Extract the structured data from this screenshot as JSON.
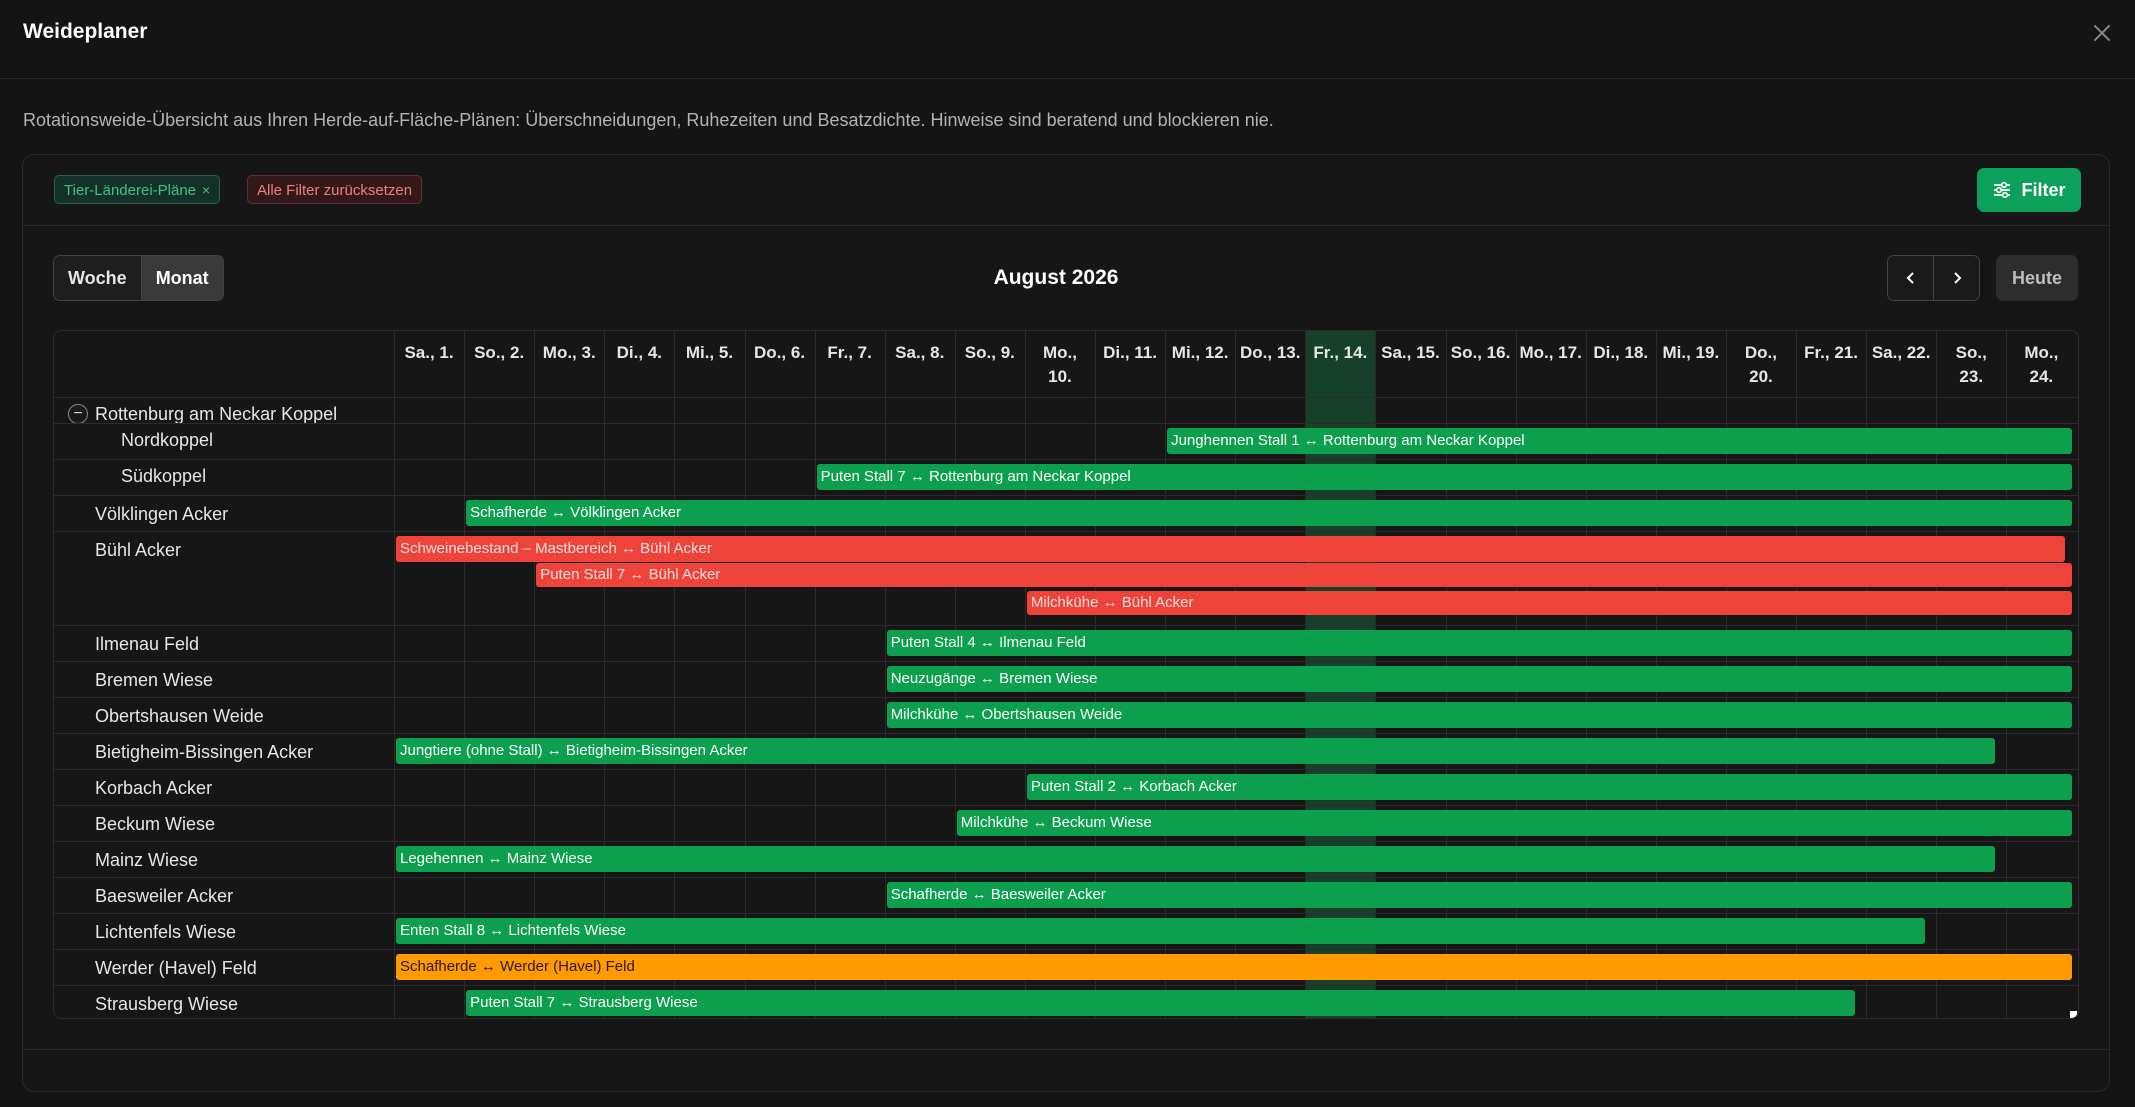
{
  "modal": {
    "title": "Weideplaner",
    "description": "Rotationsweide-Übersicht aus Ihren Herde-auf-Fläche-Plänen: Überschneidungen, Ruhezeiten und Besatzdichte. Hinweise sind beratend und blockieren nie."
  },
  "filters": {
    "active_chip": "Tier-Länderei-Pläne",
    "active_chip_close": "×",
    "reset_label": "Alle Filter zurücksetzen",
    "filter_button": "Filter"
  },
  "calendar": {
    "views": {
      "week": "Woche",
      "month": "Monat",
      "selected": "Monat"
    },
    "title": "August 2026",
    "today_label": "Heute",
    "days": [
      {
        "l1": "Sa., 1.",
        "l2": ""
      },
      {
        "l1": "So., 2.",
        "l2": ""
      },
      {
        "l1": "Mo., 3.",
        "l2": ""
      },
      {
        "l1": "Di., 4.",
        "l2": ""
      },
      {
        "l1": "Mi., 5.",
        "l2": ""
      },
      {
        "l1": "Do., 6.",
        "l2": ""
      },
      {
        "l1": "Fr., 7.",
        "l2": ""
      },
      {
        "l1": "Sa., 8.",
        "l2": ""
      },
      {
        "l1": "So., 9.",
        "l2": ""
      },
      {
        "l1": "Mo.,",
        "l2": "10."
      },
      {
        "l1": "Di., 11.",
        "l2": ""
      },
      {
        "l1": "Mi., 12.",
        "l2": ""
      },
      {
        "l1": "Do., 13.",
        "l2": ""
      },
      {
        "l1": "Fr., 14.",
        "l2": ""
      },
      {
        "l1": "Sa., 15.",
        "l2": ""
      },
      {
        "l1": "So., 16.",
        "l2": ""
      },
      {
        "l1": "Mo., 17.",
        "l2": ""
      },
      {
        "l1": "Di., 18.",
        "l2": ""
      },
      {
        "l1": "Mi., 19.",
        "l2": ""
      },
      {
        "l1": "Do.,",
        "l2": "20."
      },
      {
        "l1": "Fr., 21.",
        "l2": ""
      },
      {
        "l1": "Sa., 22.",
        "l2": ""
      },
      {
        "l1": "So.,",
        "l2": "23."
      },
      {
        "l1": "Mo.,",
        "l2": "24."
      }
    ],
    "today_day": 14,
    "group_toggle": "−",
    "rows": [
      {
        "label": "Rottenburg am Neckar Koppel",
        "kind": "group"
      },
      {
        "label": "Nordkoppel",
        "kind": "child",
        "bars": [
          {
            "text": "Junghennen Stall 1 ↔ Rottenburg am Neckar Koppel",
            "start": 12,
            "end": 24.9,
            "color": "green"
          }
        ]
      },
      {
        "label": "Südkoppel",
        "kind": "child",
        "bars": [
          {
            "text": "Puten Stall 7 ↔ Rottenburg am Neckar Koppel",
            "start": 7,
            "end": 24.9,
            "color": "green"
          }
        ]
      },
      {
        "label": "Völklingen Acker",
        "kind": "item",
        "bars": [
          {
            "text": "Schafherde ↔ Völklingen Acker",
            "start": 2,
            "end": 24.9,
            "color": "green"
          }
        ]
      },
      {
        "label": "Bühl Acker",
        "kind": "item",
        "bars": [
          {
            "text": "Schweinebestand – Mastbereich ↔ Bühl Acker",
            "start": 1,
            "end": 23.9,
            "color": "red"
          },
          {
            "text": "Puten Stall 7 ↔ Bühl Acker",
            "start": 3,
            "end": 24.9,
            "color": "red"
          },
          {
            "text": "Milchkühe ↔ Bühl Acker",
            "start": 10,
            "end": 24.9,
            "color": "red"
          }
        ]
      },
      {
        "label": "Ilmenau Feld",
        "kind": "item",
        "bars": [
          {
            "text": "Puten Stall 4 ↔ Ilmenau Feld",
            "start": 8,
            "end": 24.9,
            "color": "green"
          }
        ]
      },
      {
        "label": "Bremen Wiese",
        "kind": "item",
        "bars": [
          {
            "text": "Neuzugänge ↔ Bremen Wiese",
            "start": 8,
            "end": 24.9,
            "color": "green"
          }
        ]
      },
      {
        "label": "Obertshausen Weide",
        "kind": "item",
        "bars": [
          {
            "text": "Milchkühe ↔ Obertshausen Weide",
            "start": 8,
            "end": 24.9,
            "color": "green"
          }
        ]
      },
      {
        "label": "Bietigheim-Bissingen Acker",
        "kind": "item",
        "bars": [
          {
            "text": "Jungtiere (ohne Stall) ↔ Bietigheim-Bissingen Acker",
            "start": 1,
            "end": 22.9,
            "color": "green"
          }
        ]
      },
      {
        "label": "Korbach Acker",
        "kind": "item",
        "bars": [
          {
            "text": "Puten Stall 2 ↔ Korbach Acker",
            "start": 10,
            "end": 24.9,
            "color": "green"
          }
        ]
      },
      {
        "label": "Beckum Wiese",
        "kind": "item",
        "bars": [
          {
            "text": "Milchkühe ↔ Beckum Wiese",
            "start": 9,
            "end": 24.9,
            "color": "green"
          }
        ]
      },
      {
        "label": "Mainz Wiese",
        "kind": "item",
        "bars": [
          {
            "text": "Legehennen ↔ Mainz Wiese",
            "start": 1,
            "end": 22.9,
            "color": "green"
          }
        ]
      },
      {
        "label": "Baesweiler Acker",
        "kind": "item",
        "bars": [
          {
            "text": "Schafherde ↔ Baesweiler Acker",
            "start": 8,
            "end": 24.9,
            "color": "green"
          }
        ]
      },
      {
        "label": "Lichtenfels Wiese",
        "kind": "item",
        "bars": [
          {
            "text": "Enten Stall 8 ↔ Lichtenfels Wiese",
            "start": 1,
            "end": 21.9,
            "color": "green"
          }
        ]
      },
      {
        "label": "Werder (Havel) Feld",
        "kind": "item",
        "bars": [
          {
            "text": "Schafherde ↔ Werder (Havel) Feld",
            "start": 1,
            "end": 24.9,
            "color": "orange"
          }
        ]
      },
      {
        "label": "Strausberg Wiese",
        "kind": "item",
        "bars": [
          {
            "text": "Puten Stall 7 ↔ Strausberg Wiese",
            "start": 2,
            "end": 20.9,
            "color": "green"
          }
        ]
      }
    ]
  },
  "colors": {
    "accent": "#0ca15a",
    "conflict": "#ef4238",
    "warning": "#ff9a00"
  }
}
